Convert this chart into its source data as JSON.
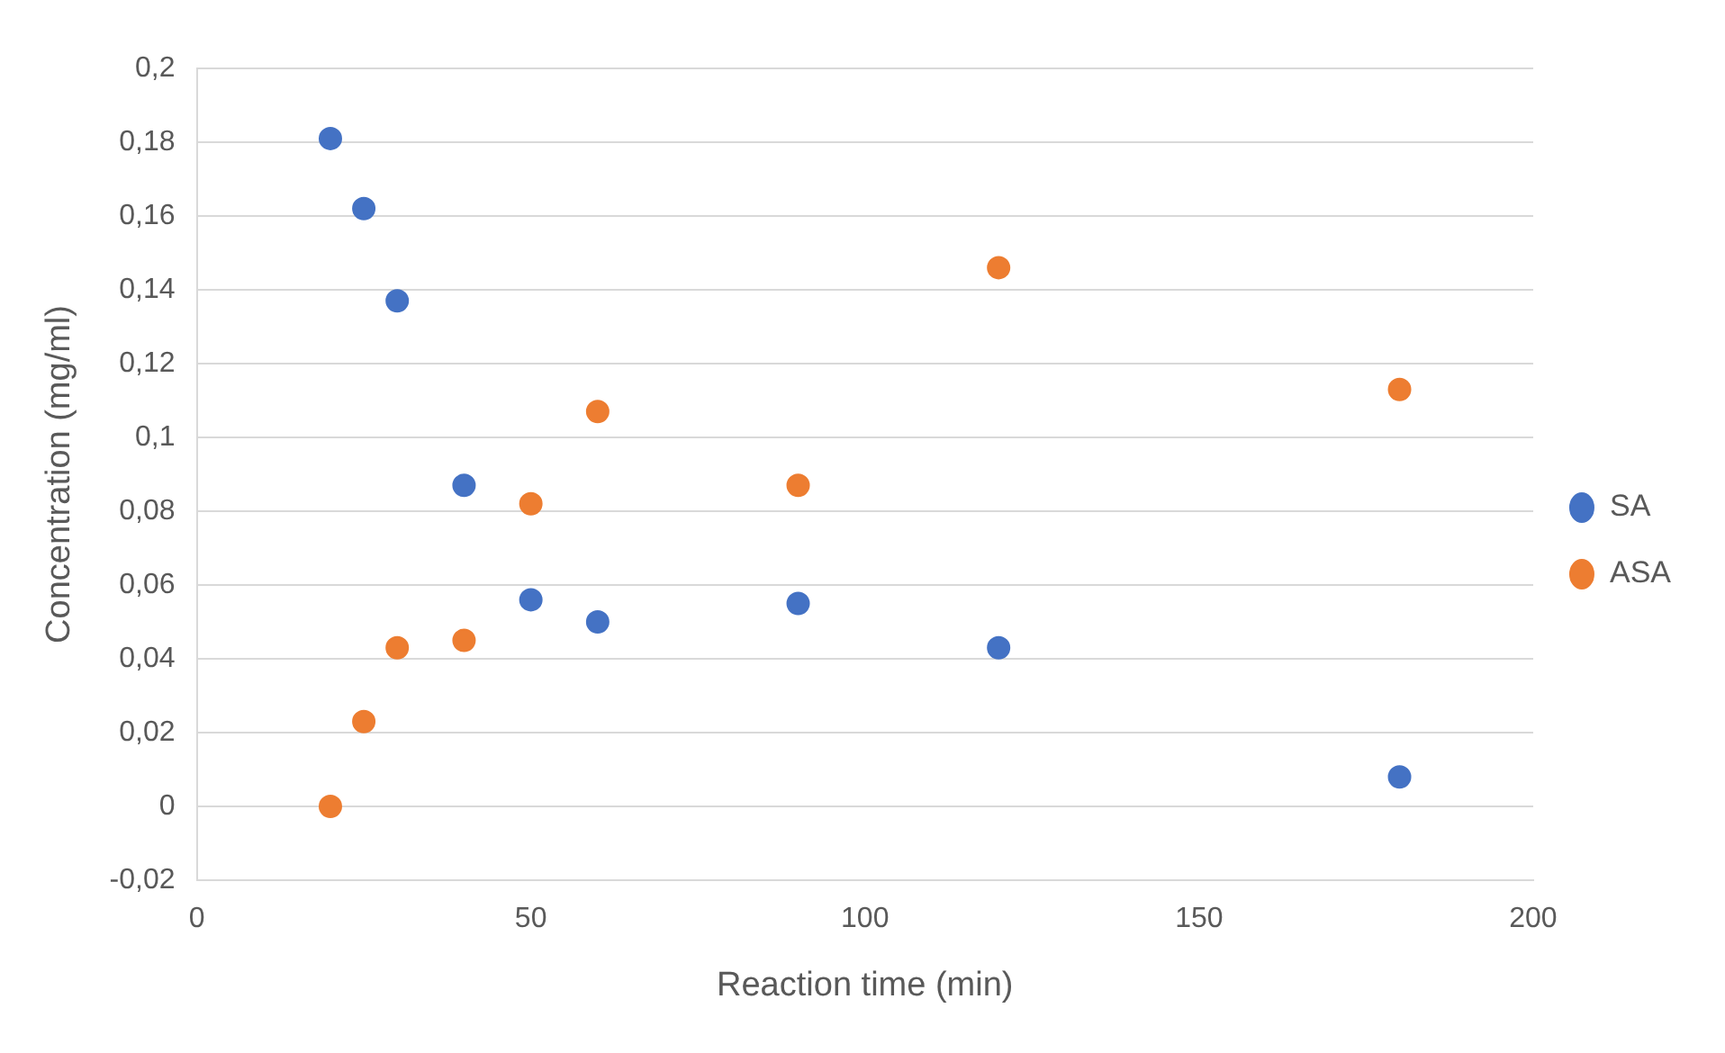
{
  "chart_data": {
    "type": "scatter",
    "xlabel": "Reaction time (min)",
    "ylabel": "Concentration (mg/ml)",
    "x": [
      20,
      25,
      30,
      40,
      50,
      60,
      90,
      120,
      180
    ],
    "series": [
      {
        "name": "SA",
        "color": "#4472c4",
        "values": [
          0.181,
          0.162,
          0.137,
          0.087,
          0.056,
          0.05,
          0.055,
          0.043,
          0.008
        ]
      },
      {
        "name": "ASA",
        "color": "#ed7d31",
        "values": [
          0,
          0.023,
          0.043,
          0.045,
          0.082,
          0.107,
          0.087,
          0.146,
          0.113
        ]
      }
    ],
    "xlim": [
      0,
      200
    ],
    "xticks": [
      0,
      50,
      100,
      150,
      200
    ],
    "ylim": [
      -0.02,
      0.2
    ],
    "yticks": [
      {
        "value": -0.02,
        "label": "-0,02"
      },
      {
        "value": 0,
        "label": "0"
      },
      {
        "value": 0.02,
        "label": "0,02"
      },
      {
        "value": 0.04,
        "label": "0,04"
      },
      {
        "value": 0.06,
        "label": "0,06"
      },
      {
        "value": 0.08,
        "label": "0,08"
      },
      {
        "value": 0.1,
        "label": "0,1"
      },
      {
        "value": 0.12,
        "label": "0,12"
      },
      {
        "value": 0.14,
        "label": "0,14"
      },
      {
        "value": 0.16,
        "label": "0,16"
      },
      {
        "value": 0.18,
        "label": "0,18"
      },
      {
        "value": 0.2,
        "label": "0,2"
      }
    ],
    "grid": "y",
    "legend": "right",
    "marker": "circle"
  }
}
